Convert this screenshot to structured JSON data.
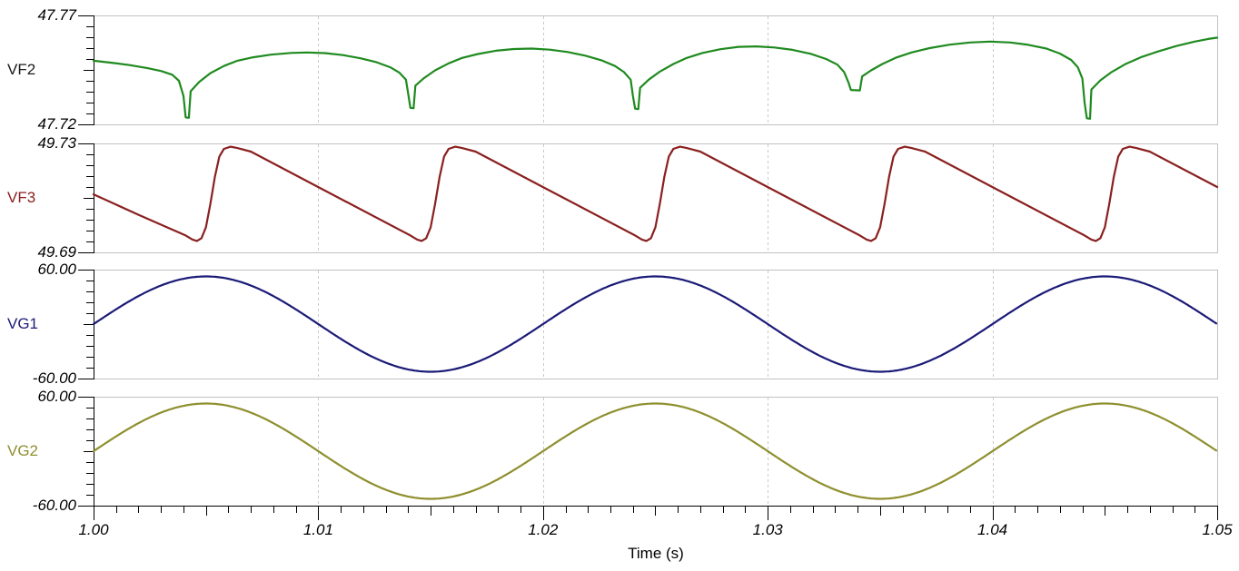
{
  "chart_data": {
    "type": "line",
    "title": "",
    "xlabel": "Time (s)",
    "x_range": [
      1.0,
      1.05
    ],
    "x_major_tick_labels": [
      "1.00",
      "1.01",
      "1.02",
      "1.03",
      "1.04",
      "1.05"
    ],
    "x_minor_tick_step": 0.001,
    "x_medium_tick_step": 0.005,
    "x_grid_dashed_at": [
      1.01,
      1.02,
      1.03,
      1.04
    ],
    "grid": "vertical-dashed-at-major-ticks",
    "legend_position": "left-of-each-panel",
    "frame_color": "#c0c0c0",
    "grid_color": "#c9c9c9",
    "axis_color": "#000000",
    "text_color": "#000000",
    "panels": [
      {
        "name": "VF2",
        "y_max_label": "47.77",
        "y_min_label": "47.72",
        "ylim": [
          47.72,
          47.77
        ],
        "trace_color": "#1f8a1f",
        "label_color": "#1a1a1a",
        "series": {
          "kind": "points",
          "points": [
            [
              1.0,
              47.7492
            ],
            [
              1.0008,
              47.7483
            ],
            [
              1.0016,
              47.7472
            ],
            [
              1.0024,
              47.7458
            ],
            [
              1.003,
              47.7445
            ],
            [
              1.0035,
              47.7428
            ],
            [
              1.0038,
              47.74
            ],
            [
              1.004,
              47.733
            ],
            [
              1.0041,
              47.7232
            ],
            [
              1.00424,
              47.723
            ],
            [
              1.00432,
              47.7352
            ],
            [
              1.0047,
              47.7395
            ],
            [
              1.0052,
              47.7435
            ],
            [
              1.0058,
              47.7468
            ],
            [
              1.0064,
              47.7492
            ],
            [
              1.0071,
              47.7508
            ],
            [
              1.0079,
              47.752
            ],
            [
              1.0088,
              47.7528
            ],
            [
              1.0095,
              47.753
            ],
            [
              1.0103,
              47.7527
            ],
            [
              1.0111,
              47.7518
            ],
            [
              1.0119,
              47.7503
            ],
            [
              1.0126,
              47.7485
            ],
            [
              1.0132,
              47.7462
            ],
            [
              1.0136,
              47.7438
            ],
            [
              1.0139,
              47.7405
            ],
            [
              1.014,
              47.734
            ],
            [
              1.0141,
              47.7276
            ],
            [
              1.01424,
              47.7274
            ],
            [
              1.01432,
              47.7378
            ],
            [
              1.0147,
              47.7412
            ],
            [
              1.0152,
              47.7448
            ],
            [
              1.0158,
              47.748
            ],
            [
              1.0164,
              47.7505
            ],
            [
              1.0171,
              47.7523
            ],
            [
              1.0179,
              47.7538
            ],
            [
              1.0187,
              47.7546
            ],
            [
              1.0195,
              47.7548
            ],
            [
              1.0203,
              47.7543
            ],
            [
              1.0211,
              47.7532
            ],
            [
              1.0219,
              47.7515
            ],
            [
              1.0226,
              47.7494
            ],
            [
              1.0232,
              47.7468
            ],
            [
              1.0236,
              47.744
            ],
            [
              1.0239,
              47.7405
            ],
            [
              1.024,
              47.733
            ],
            [
              1.0241,
              47.7272
            ],
            [
              1.02424,
              47.727
            ],
            [
              1.02432,
              47.7368
            ],
            [
              1.0247,
              47.7405
            ],
            [
              1.0252,
              47.7442
            ],
            [
              1.0258,
              47.7477
            ],
            [
              1.0264,
              47.7505
            ],
            [
              1.0271,
              47.7528
            ],
            [
              1.0279,
              47.7545
            ],
            [
              1.0287,
              47.7556
            ],
            [
              1.0295,
              47.7558
            ],
            [
              1.0303,
              47.7553
            ],
            [
              1.0311,
              47.7542
            ],
            [
              1.0319,
              47.7524
            ],
            [
              1.0326,
              47.75
            ],
            [
              1.0331,
              47.7474
            ],
            [
              1.0334,
              47.744
            ],
            [
              1.0336,
              47.739
            ],
            [
              1.0337,
              47.7358
            ],
            [
              1.0341,
              47.7356
            ],
            [
              1.0342,
              47.742
            ],
            [
              1.0346,
              47.7448
            ],
            [
              1.0351,
              47.7477
            ],
            [
              1.0357,
              47.7506
            ],
            [
              1.0364,
              47.753
            ],
            [
              1.0372,
              47.755
            ],
            [
              1.0381,
              47.7566
            ],
            [
              1.039,
              47.7576
            ],
            [
              1.0399,
              47.758
            ],
            [
              1.0408,
              47.7576
            ],
            [
              1.0416,
              47.7565
            ],
            [
              1.0424,
              47.7548
            ],
            [
              1.043,
              47.7525
            ],
            [
              1.0435,
              47.7496
            ],
            [
              1.0438,
              47.7462
            ],
            [
              1.044,
              47.741
            ],
            [
              1.0441,
              47.73
            ],
            [
              1.0442,
              47.7228
            ],
            [
              1.04434,
              47.7226
            ],
            [
              1.0444,
              47.736
            ],
            [
              1.0448,
              47.7402
            ],
            [
              1.0453,
              47.744
            ],
            [
              1.0459,
              47.7476
            ],
            [
              1.0466,
              47.7508
            ],
            [
              1.0474,
              47.7536
            ],
            [
              1.0482,
              47.756
            ],
            [
              1.049,
              47.758
            ],
            [
              1.0496,
              47.7592
            ],
            [
              1.05,
              47.7598
            ]
          ]
        }
      },
      {
        "name": "VF3",
        "y_max_label": "49.73",
        "y_min_label": "49.69",
        "ylim": [
          49.69,
          49.73
        ],
        "trace_color": "#8a2020",
        "label_color": "#8a2020",
        "series": {
          "kind": "points",
          "points": [
            [
              1.0,
              49.7113
            ],
            [
              1.002,
              49.7038
            ],
            [
              1.0041,
              49.6962
            ],
            [
              1.0044,
              49.6947
            ],
            [
              1.0046,
              49.6942
            ],
            [
              1.0048,
              49.6952
            ],
            [
              1.005,
              49.6992
            ],
            [
              1.0052,
              49.7078
            ],
            [
              1.0054,
              49.7178
            ],
            [
              1.0056,
              49.7252
            ],
            [
              1.0058,
              49.728
            ],
            [
              1.0061,
              49.7288
            ],
            [
              1.0064,
              49.7283
            ],
            [
              1.007,
              49.727
            ],
            [
              1.0105,
              49.7118
            ],
            [
              1.0141,
              49.6962
            ],
            [
              1.0144,
              49.6947
            ],
            [
              1.0146,
              49.6942
            ],
            [
              1.0148,
              49.6952
            ],
            [
              1.015,
              49.6992
            ],
            [
              1.0152,
              49.7078
            ],
            [
              1.0154,
              49.7178
            ],
            [
              1.0156,
              49.7252
            ],
            [
              1.0158,
              49.728
            ],
            [
              1.0161,
              49.7288
            ],
            [
              1.0164,
              49.7283
            ],
            [
              1.017,
              49.727
            ],
            [
              1.0205,
              49.7118
            ],
            [
              1.0241,
              49.6962
            ],
            [
              1.0244,
              49.6947
            ],
            [
              1.0246,
              49.6942
            ],
            [
              1.0248,
              49.6952
            ],
            [
              1.025,
              49.6992
            ],
            [
              1.0252,
              49.7078
            ],
            [
              1.0254,
              49.7178
            ],
            [
              1.0256,
              49.7252
            ],
            [
              1.0258,
              49.728
            ],
            [
              1.0261,
              49.7288
            ],
            [
              1.0264,
              49.7283
            ],
            [
              1.027,
              49.727
            ],
            [
              1.0305,
              49.7118
            ],
            [
              1.0341,
              49.6962
            ],
            [
              1.0344,
              49.6947
            ],
            [
              1.0346,
              49.6942
            ],
            [
              1.0348,
              49.6952
            ],
            [
              1.035,
              49.6992
            ],
            [
              1.0352,
              49.7078
            ],
            [
              1.0354,
              49.7178
            ],
            [
              1.0356,
              49.7252
            ],
            [
              1.0358,
              49.728
            ],
            [
              1.0361,
              49.7288
            ],
            [
              1.0364,
              49.7283
            ],
            [
              1.037,
              49.727
            ],
            [
              1.0405,
              49.7118
            ],
            [
              1.0441,
              49.6962
            ],
            [
              1.0444,
              49.6947
            ],
            [
              1.0446,
              49.6942
            ],
            [
              1.0448,
              49.6952
            ],
            [
              1.045,
              49.6992
            ],
            [
              1.0452,
              49.7078
            ],
            [
              1.0454,
              49.7178
            ],
            [
              1.0456,
              49.7252
            ],
            [
              1.0458,
              49.728
            ],
            [
              1.0461,
              49.7288
            ],
            [
              1.0464,
              49.7283
            ],
            [
              1.047,
              49.727
            ],
            [
              1.05,
              49.714
            ]
          ]
        }
      },
      {
        "name": "VG1",
        "y_max_label": "60.00",
        "y_min_label": "-60.00",
        "ylim": [
          -60,
          60
        ],
        "trace_color": "#1b1b78",
        "label_color": "#1b1b78",
        "series": {
          "kind": "sine",
          "amplitude": 52.5,
          "frequency_hz": 50,
          "phase_deg": 0,
          "offset": 0
        }
      },
      {
        "name": "VG2",
        "y_max_label": "60.00",
        "y_min_label": "-60.00",
        "ylim": [
          -60,
          60
        ],
        "trace_color": "#8f8f2f",
        "label_color": "#8f8f2f",
        "series": {
          "kind": "sine",
          "amplitude": 52.5,
          "frequency_hz": 50,
          "phase_deg": 0,
          "offset": 0
        }
      }
    ]
  }
}
